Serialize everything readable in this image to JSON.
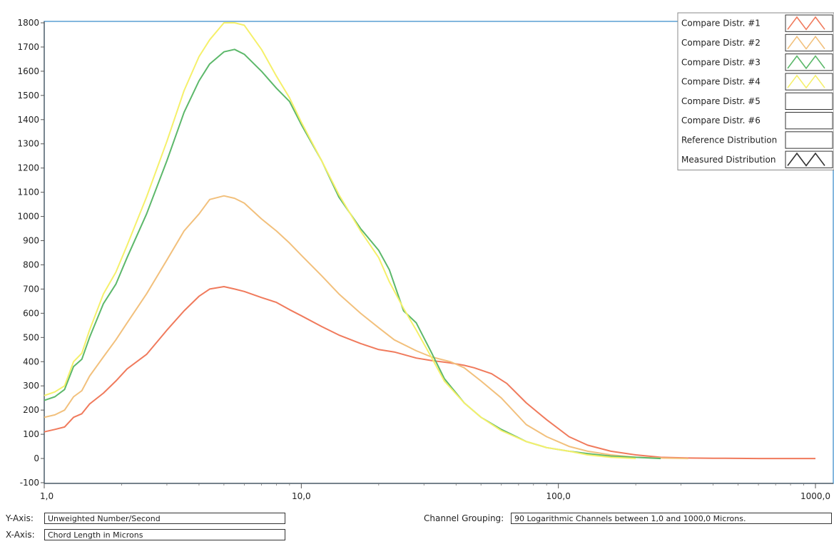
{
  "footer": {
    "y_axis_label": "Y-Axis:",
    "y_axis_value": "Unweighted Number/Second",
    "x_axis_label": "X-Axis:",
    "x_axis_value": "Chord Length in Microns",
    "channel_label": "Channel Grouping:",
    "channel_value": "90 Logarithmic Channels between 1,0 and 1000,0 Microns."
  },
  "legend": {
    "placement": "top-right",
    "items": [
      {
        "label": "Compare Distr. #1",
        "color": "#f07a5c",
        "swatch": true
      },
      {
        "label": "Compare Distr. #2",
        "color": "#f2c07c",
        "swatch": true
      },
      {
        "label": "Compare Distr. #3",
        "color": "#5cb86a",
        "swatch": true
      },
      {
        "label": "Compare Distr. #4",
        "color": "#f5f06a",
        "swatch": true
      },
      {
        "label": "Compare Distr. #5",
        "color": "#ffffff",
        "swatch": false
      },
      {
        "label": "Compare Distr. #6",
        "color": "#ffffff",
        "swatch": false
      },
      {
        "label": "Reference Distribution",
        "color": "#ffffff",
        "swatch": false
      },
      {
        "label": "Measured Distribution",
        "color": "#333333",
        "swatch": true
      }
    ]
  },
  "chart_data": {
    "type": "line",
    "x_scale": "log",
    "xlim": [
      1,
      1000
    ],
    "ylim": [
      -100,
      1800
    ],
    "grid": false,
    "x_ticks": [
      {
        "value": 1,
        "label": "1,0"
      },
      {
        "value": 10,
        "label": "10,0"
      },
      {
        "value": 100,
        "label": "100,0"
      },
      {
        "value": 1000,
        "label": "1000,0"
      }
    ],
    "y_ticks": [
      -100,
      0,
      100,
      200,
      300,
      400,
      500,
      600,
      700,
      800,
      900,
      1000,
      1100,
      1200,
      1300,
      1400,
      1500,
      1600,
      1700,
      1800
    ],
    "series": [
      {
        "name": "Compare Distr. #1",
        "color": "#f07a5c",
        "x": [
          1,
          1.1,
          1.2,
          1.3,
          1.4,
          1.5,
          1.7,
          1.9,
          2.1,
          2.5,
          3,
          3.5,
          4,
          4.4,
          5,
          5.5,
          6,
          7,
          8,
          9,
          10,
          12,
          14,
          17,
          20,
          23,
          28,
          32,
          38,
          43,
          47,
          55,
          63,
          75,
          90,
          110,
          130,
          160,
          200,
          250,
          320,
          400,
          600,
          800,
          1000
        ],
        "y": [
          110,
          120,
          130,
          170,
          185,
          225,
          270,
          320,
          370,
          430,
          530,
          610,
          670,
          700,
          710,
          700,
          690,
          665,
          645,
          615,
          590,
          545,
          510,
          475,
          450,
          440,
          415,
          405,
          395,
          385,
          375,
          350,
          310,
          230,
          160,
          90,
          55,
          30,
          15,
          5,
          2,
          1,
          0,
          0,
          0
        ]
      },
      {
        "name": "Compare Distr. #2",
        "color": "#f2c07c",
        "x": [
          1,
          1.1,
          1.2,
          1.3,
          1.4,
          1.5,
          1.7,
          1.9,
          2.1,
          2.5,
          3,
          3.5,
          4,
          4.4,
          5,
          5.5,
          6,
          7,
          8,
          9,
          10,
          12,
          14,
          17,
          20,
          23,
          28,
          32,
          38,
          43,
          50,
          60,
          75,
          90,
          110,
          130,
          160,
          200,
          250,
          320
        ],
        "y": [
          170,
          180,
          200,
          255,
          280,
          340,
          420,
          490,
          560,
          680,
          820,
          940,
          1010,
          1070,
          1085,
          1075,
          1055,
          990,
          940,
          890,
          840,
          755,
          680,
          600,
          540,
          490,
          445,
          420,
          400,
          375,
          320,
          250,
          140,
          90,
          50,
          30,
          15,
          5,
          2,
          0
        ]
      },
      {
        "name": "Compare Distr. #3",
        "color": "#5cb86a",
        "x": [
          1,
          1.1,
          1.2,
          1.3,
          1.4,
          1.5,
          1.7,
          1.9,
          2.1,
          2.5,
          3,
          3.5,
          4,
          4.4,
          5,
          5.5,
          6,
          7,
          8,
          9,
          10,
          12,
          14,
          17,
          20,
          22,
          25,
          28,
          32,
          36,
          43,
          50,
          60,
          75,
          90,
          110,
          130,
          160,
          200,
          250
        ],
        "y": [
          240,
          255,
          285,
          380,
          410,
          500,
          640,
          720,
          830,
          1010,
          1230,
          1430,
          1560,
          1630,
          1680,
          1690,
          1670,
          1600,
          1530,
          1475,
          1380,
          1230,
          1080,
          950,
          860,
          780,
          610,
          560,
          440,
          330,
          230,
          170,
          120,
          70,
          45,
          30,
          20,
          10,
          5,
          0
        ]
      },
      {
        "name": "Compare Distr. #4",
        "color": "#f5f06a",
        "x": [
          1,
          1.1,
          1.2,
          1.3,
          1.4,
          1.5,
          1.7,
          1.9,
          2.1,
          2.5,
          3,
          3.5,
          4,
          4.4,
          5,
          5.5,
          6,
          7,
          8,
          9,
          10,
          12,
          14,
          17,
          20,
          22,
          25,
          28,
          32,
          36,
          43,
          50,
          60,
          75,
          90,
          110,
          130,
          160,
          200
        ],
        "y": [
          260,
          275,
          300,
          400,
          435,
          530,
          680,
          770,
          880,
          1080,
          1310,
          1520,
          1660,
          1730,
          1800,
          1800,
          1790,
          1690,
          1580,
          1490,
          1390,
          1230,
          1090,
          940,
          830,
          730,
          620,
          530,
          420,
          320,
          230,
          170,
          115,
          70,
          45,
          30,
          15,
          5,
          0
        ]
      }
    ]
  }
}
